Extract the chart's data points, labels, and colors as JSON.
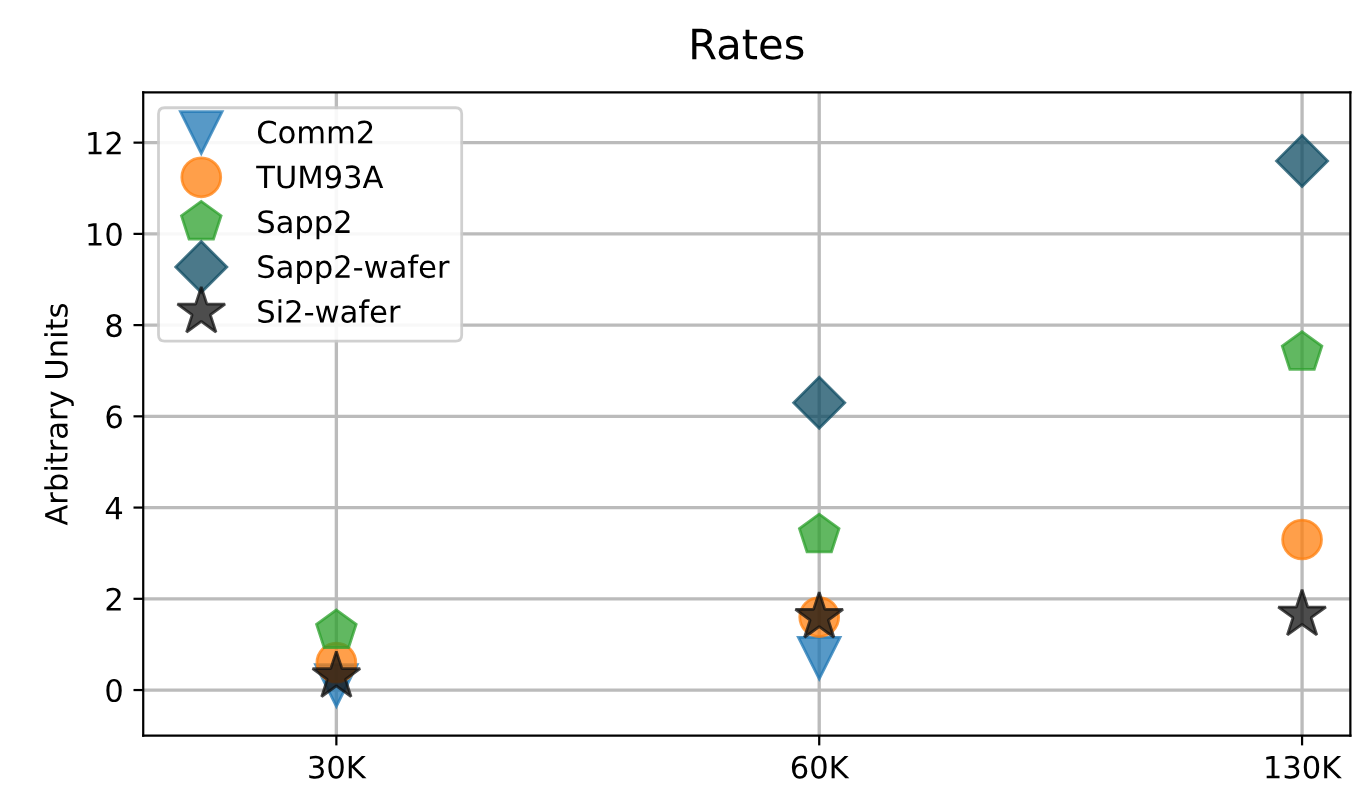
{
  "chart_data": {
    "type": "scatter",
    "title": "Rates",
    "ylabel": "Arbitrary Units",
    "categories": [
      "30K",
      "60K",
      "130K"
    ],
    "ylim": [
      -1,
      13.1
    ],
    "yticks": [
      0,
      2,
      4,
      6,
      8,
      10,
      12
    ],
    "grid": true,
    "legend": "top left",
    "series": [
      {
        "name": "Comm2",
        "color": "#1f77b4",
        "marker": "triangle",
        "values": [
          0.1,
          0.7,
          null
        ]
      },
      {
        "name": "TUM93A",
        "color": "#ff7f0e",
        "marker": "circle",
        "values": [
          0.6,
          1.6,
          3.3
        ]
      },
      {
        "name": "Sapp2",
        "color": "#2ca02c",
        "values": [
          1.3,
          3.4,
          7.4
        ]
      },
      {
        "name": "Sapp2-wafer",
        "color": "#0f4c63",
        "marker": "diamond",
        "values": [
          null,
          6.3,
          11.6
        ]
      },
      {
        "name": "Si2-wafer",
        "color": "#111111",
        "marker": "star",
        "values": [
          0.3,
          1.6,
          1.65
        ]
      }
    ]
  }
}
